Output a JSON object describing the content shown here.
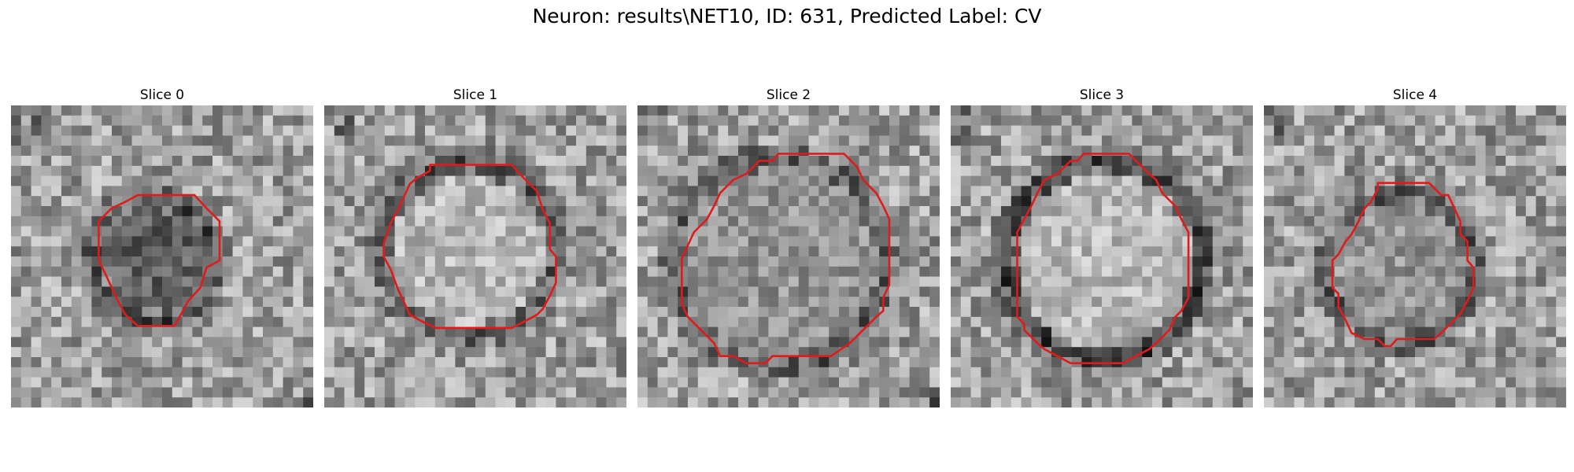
{
  "figure": {
    "title": "Neuron: results\\NET10, ID: 631, Predicted Label: CV"
  },
  "slices": [
    {
      "title": "Slice 0",
      "seed": 11,
      "dark_ring": true,
      "ring_strength": 0.55,
      "interior": "dark",
      "contour": [
        [
          13.8,
          8.9
        ],
        [
          18.2,
          8.9
        ],
        [
          19.4,
          10.2
        ],
        [
          20.7,
          11.5
        ],
        [
          20.7,
          15.4
        ],
        [
          19.4,
          16.1
        ],
        [
          18.8,
          18.1
        ],
        [
          17.6,
          19.4
        ],
        [
          16.9,
          20.7
        ],
        [
          16.2,
          21.9
        ],
        [
          12.6,
          21.9
        ],
        [
          11.9,
          21.3
        ],
        [
          11.3,
          20.7
        ],
        [
          10.6,
          19.4
        ],
        [
          10.0,
          18.1
        ],
        [
          9.4,
          16.8
        ],
        [
          8.7,
          15.4
        ],
        [
          8.7,
          11.5
        ],
        [
          10.0,
          10.2
        ],
        [
          11.3,
          9.6
        ],
        [
          12.6,
          8.9
        ]
      ]
    },
    {
      "title": "Slice 1",
      "seed": 23,
      "dark_ring": true,
      "ring_strength": 0.45,
      "interior": "light",
      "contour": [
        [
          10.5,
          5.9
        ],
        [
          18.6,
          5.9
        ],
        [
          19.8,
          7.2
        ],
        [
          21.1,
          8.5
        ],
        [
          21.7,
          10.4
        ],
        [
          22.4,
          11.7
        ],
        [
          22.4,
          14.3
        ],
        [
          23.0,
          15.0
        ],
        [
          23.0,
          17.6
        ],
        [
          22.4,
          18.9
        ],
        [
          21.7,
          20.2
        ],
        [
          21.1,
          20.8
        ],
        [
          19.8,
          21.5
        ],
        [
          18.6,
          22.1
        ],
        [
          11.1,
          22.1
        ],
        [
          9.8,
          21.5
        ],
        [
          8.5,
          20.8
        ],
        [
          7.9,
          19.5
        ],
        [
          7.3,
          18.2
        ],
        [
          6.6,
          16.3
        ],
        [
          5.9,
          15.0
        ],
        [
          5.9,
          13.7
        ],
        [
          6.6,
          11.7
        ],
        [
          7.3,
          10.4
        ],
        [
          7.9,
          9.1
        ],
        [
          8.5,
          7.8
        ],
        [
          9.2,
          7.2
        ],
        [
          10.5,
          6.5
        ]
      ]
    },
    {
      "title": "Slice 2",
      "seed": 37,
      "dark_ring": true,
      "ring_strength": 0.5,
      "interior": "mid",
      "contour": [
        [
          14.0,
          4.8
        ],
        [
          20.5,
          4.8
        ],
        [
          21.8,
          6.1
        ],
        [
          22.4,
          7.4
        ],
        [
          23.7,
          8.7
        ],
        [
          24.4,
          10.0
        ],
        [
          25.0,
          11.3
        ],
        [
          25.0,
          17.8
        ],
        [
          24.4,
          19.1
        ],
        [
          24.4,
          20.4
        ],
        [
          23.7,
          21.0
        ],
        [
          22.4,
          22.3
        ],
        [
          21.1,
          23.6
        ],
        [
          19.2,
          24.9
        ],
        [
          13.4,
          24.9
        ],
        [
          12.7,
          25.6
        ],
        [
          10.8,
          25.6
        ],
        [
          9.5,
          24.9
        ],
        [
          8.2,
          24.9
        ],
        [
          7.6,
          23.6
        ],
        [
          6.3,
          22.3
        ],
        [
          5.0,
          21.0
        ],
        [
          4.4,
          19.7
        ],
        [
          4.4,
          17.8
        ],
        [
          4.4,
          15.2
        ],
        [
          5.0,
          13.9
        ],
        [
          5.6,
          12.6
        ],
        [
          6.9,
          11.3
        ],
        [
          7.6,
          10.0
        ],
        [
          8.2,
          8.7
        ],
        [
          9.5,
          7.4
        ],
        [
          10.8,
          6.8
        ],
        [
          12.1,
          5.5
        ],
        [
          13.4,
          5.5
        ]
      ]
    },
    {
      "title": "Slice 3",
      "seed": 53,
      "dark_ring": true,
      "ring_strength": 0.7,
      "interior": "light",
      "contour": [
        [
          13.2,
          4.8
        ],
        [
          17.7,
          4.8
        ],
        [
          18.4,
          5.5
        ],
        [
          19.7,
          6.8
        ],
        [
          20.4,
          7.4
        ],
        [
          21.0,
          8.7
        ],
        [
          22.3,
          10.0
        ],
        [
          22.9,
          11.3
        ],
        [
          23.6,
          12.6
        ],
        [
          23.6,
          19.1
        ],
        [
          22.9,
          20.4
        ],
        [
          22.3,
          21.0
        ],
        [
          21.7,
          22.3
        ],
        [
          21.0,
          23.0
        ],
        [
          20.4,
          23.6
        ],
        [
          19.7,
          24.2
        ],
        [
          18.4,
          24.9
        ],
        [
          17.1,
          25.6
        ],
        [
          11.9,
          25.6
        ],
        [
          10.6,
          24.9
        ],
        [
          9.3,
          24.2
        ],
        [
          8.6,
          23.6
        ],
        [
          7.3,
          22.3
        ],
        [
          7.3,
          21.7
        ],
        [
          6.6,
          21.0
        ],
        [
          6.6,
          12.6
        ],
        [
          7.3,
          11.3
        ],
        [
          8.0,
          10.0
        ],
        [
          8.6,
          8.7
        ],
        [
          9.3,
          7.4
        ],
        [
          10.6,
          6.8
        ],
        [
          11.9,
          5.5
        ],
        [
          12.6,
          5.5
        ]
      ]
    },
    {
      "title": "Slice 4",
      "seed": 71,
      "dark_ring": true,
      "ring_strength": 0.45,
      "interior": "mid",
      "contour": [
        [
          11.3,
          7.7
        ],
        [
          16.4,
          7.7
        ],
        [
          17.6,
          8.9
        ],
        [
          18.3,
          8.9
        ],
        [
          18.9,
          10.2
        ],
        [
          19.5,
          11.5
        ],
        [
          19.5,
          12.8
        ],
        [
          20.2,
          13.5
        ],
        [
          20.2,
          15.4
        ],
        [
          20.8,
          16.1
        ],
        [
          20.8,
          18.1
        ],
        [
          20.2,
          19.4
        ],
        [
          19.5,
          20.7
        ],
        [
          18.9,
          21.3
        ],
        [
          17.6,
          22.6
        ],
        [
          16.9,
          23.2
        ],
        [
          13.2,
          23.2
        ],
        [
          12.6,
          23.9
        ],
        [
          12.0,
          23.9
        ],
        [
          11.3,
          23.2
        ],
        [
          10.0,
          23.2
        ],
        [
          8.7,
          22.6
        ],
        [
          8.1,
          21.3
        ],
        [
          7.4,
          20.0
        ],
        [
          7.4,
          18.7
        ],
        [
          6.8,
          18.1
        ],
        [
          6.8,
          15.4
        ],
        [
          7.4,
          14.8
        ],
        [
          8.1,
          13.5
        ],
        [
          8.7,
          12.8
        ],
        [
          9.4,
          11.5
        ],
        [
          10.0,
          10.2
        ],
        [
          10.6,
          9.6
        ],
        [
          11.3,
          8.3
        ]
      ]
    }
  ],
  "colors": {
    "contour": "#e01b1b"
  }
}
